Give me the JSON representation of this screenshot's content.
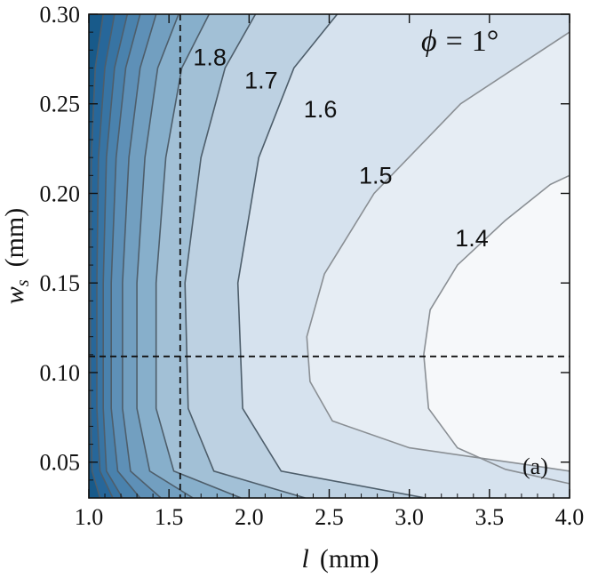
{
  "chart_data": {
    "type": "contour",
    "xlabel": {
      "var": "l",
      "unit": "(mm)"
    },
    "ylabel": {
      "var": "w",
      "sub": "s",
      "unit": "(mm)"
    },
    "xlim": [
      1.0,
      4.0
    ],
    "ylim": [
      0.03,
      0.3
    ],
    "xticks": [
      "1.0",
      "1.5",
      "2.0",
      "2.5",
      "3.0",
      "3.5",
      "4.0"
    ],
    "yticks": [
      "0.05",
      "0.10",
      "0.15",
      "0.20",
      "0.25",
      "0.30"
    ],
    "annotation": {
      "phi_symbol": "ϕ",
      "equals": "=",
      "value": "1°"
    },
    "panel_label": "(a)",
    "reference_lines": {
      "vertical_x": 1.57,
      "horizontal_y": 0.109
    },
    "fill_colors": [
      "#185a8a",
      "#27679a",
      "#3874a3",
      "#4a82ad",
      "#5e90b7",
      "#729fc0",
      "#87afcb",
      "#a2c0d6",
      "#bdd1e2",
      "#d6e2ee",
      "#e6edf4",
      "#f6f8fa"
    ],
    "contours": [
      {
        "label": "",
        "x": [
          1.07,
          1.02,
          1.01,
          1.01,
          1.015,
          1.04,
          1.09
        ],
        "y": [
          0.03,
          0.045,
          0.08,
          0.15,
          0.22,
          0.27,
          0.3
        ]
      },
      {
        "label": "",
        "x": [
          1.15,
          1.07,
          1.05,
          1.05,
          1.06,
          1.1,
          1.16
        ],
        "y": [
          0.03,
          0.045,
          0.08,
          0.15,
          0.22,
          0.27,
          0.3
        ]
      },
      {
        "label": "",
        "x": [
          1.21,
          1.11,
          1.09,
          1.09,
          1.11,
          1.16,
          1.24
        ],
        "y": [
          0.03,
          0.045,
          0.08,
          0.15,
          0.22,
          0.27,
          0.3
        ]
      },
      {
        "label": "",
        "x": [
          1.32,
          1.18,
          1.14,
          1.14,
          1.17,
          1.23,
          1.32
        ],
        "y": [
          0.03,
          0.045,
          0.08,
          0.15,
          0.22,
          0.27,
          0.3
        ]
      },
      {
        "label": "",
        "x": [
          1.45,
          1.26,
          1.21,
          1.21,
          1.25,
          1.32,
          1.42
        ],
        "y": [
          0.03,
          0.045,
          0.08,
          0.15,
          0.22,
          0.27,
          0.3
        ]
      },
      {
        "label": "",
        "x": [
          1.65,
          1.38,
          1.3,
          1.3,
          1.35,
          1.43,
          1.56
        ],
        "y": [
          0.03,
          0.045,
          0.08,
          0.15,
          0.22,
          0.27,
          0.3
        ]
      },
      {
        "label": "1.8",
        "x": [
          1.95,
          1.53,
          1.42,
          1.42,
          1.48,
          1.58,
          1.75
        ],
        "y": [
          0.03,
          0.045,
          0.08,
          0.15,
          0.22,
          0.27,
          0.3
        ]
      },
      {
        "label": "1.7",
        "x": [
          2.35,
          1.78,
          1.62,
          1.6,
          1.7,
          1.85,
          2.04
        ],
        "y": [
          0.03,
          0.045,
          0.08,
          0.15,
          0.22,
          0.27,
          0.3
        ]
      },
      {
        "label": "1.6",
        "x": [
          3.1,
          2.2,
          1.96,
          1.93,
          2.06,
          2.28,
          2.55
        ],
        "y": [
          0.03,
          0.045,
          0.08,
          0.15,
          0.22,
          0.27,
          0.3
        ]
      },
      {
        "label": "1.5",
        "x": [
          4.0,
          3.7,
          3.0,
          2.52,
          2.38,
          2.36,
          2.47,
          2.78,
          3.32,
          4.0
        ],
        "y": [
          0.045,
          0.049,
          0.058,
          0.073,
          0.095,
          0.12,
          0.155,
          0.2,
          0.25,
          0.29
        ]
      },
      {
        "label": "1.4",
        "x": [
          4.0,
          3.6,
          3.3,
          3.12,
          3.09,
          3.13,
          3.3,
          3.6,
          3.88,
          4.0
        ],
        "y": [
          0.038,
          0.046,
          0.058,
          0.08,
          0.11,
          0.135,
          0.16,
          0.185,
          0.205,
          0.21
        ]
      }
    ],
    "contour_labels": [
      {
        "text": "1.8",
        "x": 1.755,
        "y": 0.275
      },
      {
        "text": "1.7",
        "x": 2.075,
        "y": 0.262
      },
      {
        "text": "1.6",
        "x": 2.445,
        "y": 0.246
      },
      {
        "text": "1.5",
        "x": 2.79,
        "y": 0.209
      },
      {
        "text": "1.4",
        "x": 3.39,
        "y": 0.174
      }
    ]
  }
}
